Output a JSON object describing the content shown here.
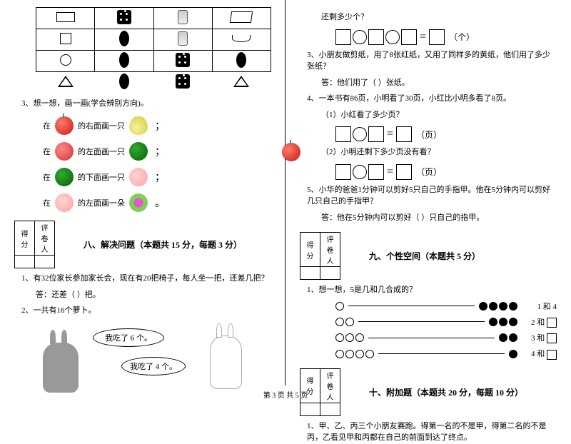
{
  "footer": "第 3 页  共 5 页",
  "left": {
    "q3_title": "3、想一想，画一画(学会辨别方向)。",
    "rows": [
      {
        "pre": "在",
        "post": "的右面画一只",
        "colon": "；"
      },
      {
        "pre": "在",
        "post": "的左面画一只",
        "colon": "；"
      },
      {
        "pre": "在",
        "post": "的下面画一只",
        "colon": "；"
      },
      {
        "pre": "在",
        "post": "的左面画一朵",
        "colon": "。"
      }
    ],
    "score_labels": {
      "col1": "得分",
      "col2": "评卷人"
    },
    "section8": "八、解决问题（本题共 15 分，每题 3 分）",
    "q8_1": "1、有32位家长参加家长会，现在有20把椅子，每人坐一把，还差几把？",
    "q8_1_ans": "答：还差（    ）把。",
    "q8_2": "2、一共有16个萝卜。",
    "bubble1": "我吃了 6 个。",
    "bubble2": "我吃了 4 个。"
  },
  "right": {
    "q2_tail": "还剩多少个？",
    "q2_unit": "（个）",
    "q3": "3、小朋友做剪纸，用了8张红纸，又用了同样多的黄纸，他们用了多少张纸？",
    "q3_ans": "答：他们用了（    ）张纸。",
    "q4": "4、一本书有86页，小明看了30页，小红比小明多看了8页。",
    "q4_1": "（1）小红看了多少页？",
    "q4_1_unit": "（页）",
    "q4_2": "（2）小明还剩下多少页没有看？",
    "q4_2_unit": "（页）",
    "q5": "5、小华的爸爸1分钟可以剪好5只自己的手指甲。他在5分钟内可以剪好几只自己的手指甲？",
    "q5_ans": "答：他在5分钟内可以剪好（    ）只自己的指甲。",
    "score_labels": {
      "col1": "得分",
      "col2": "评卷人"
    },
    "section9": "九、个性空间（本题共 5 分）",
    "q9_1": "1、想一想，5是几和几合成的？",
    "bead_rows": [
      {
        "open": 1,
        "fill": 4,
        "label_pre": "1 和",
        "label_num": "4"
      },
      {
        "open": 2,
        "fill": 3,
        "label_pre": "2 和",
        "label_box": true
      },
      {
        "open": 3,
        "fill": 2,
        "label_pre": "3 和",
        "label_box": true
      },
      {
        "open": 4,
        "fill": 1,
        "label_pre": "4 和",
        "label_box": true
      }
    ],
    "section10": "十、附加题（本题共 20 分，每题 10 分）",
    "q10_1": "1、甲、乙、丙三个小朋友赛跑。得第一名的不是甲，得第二名的不是丙，乙看见甲和丙都在自己的前面到达了终点。"
  }
}
